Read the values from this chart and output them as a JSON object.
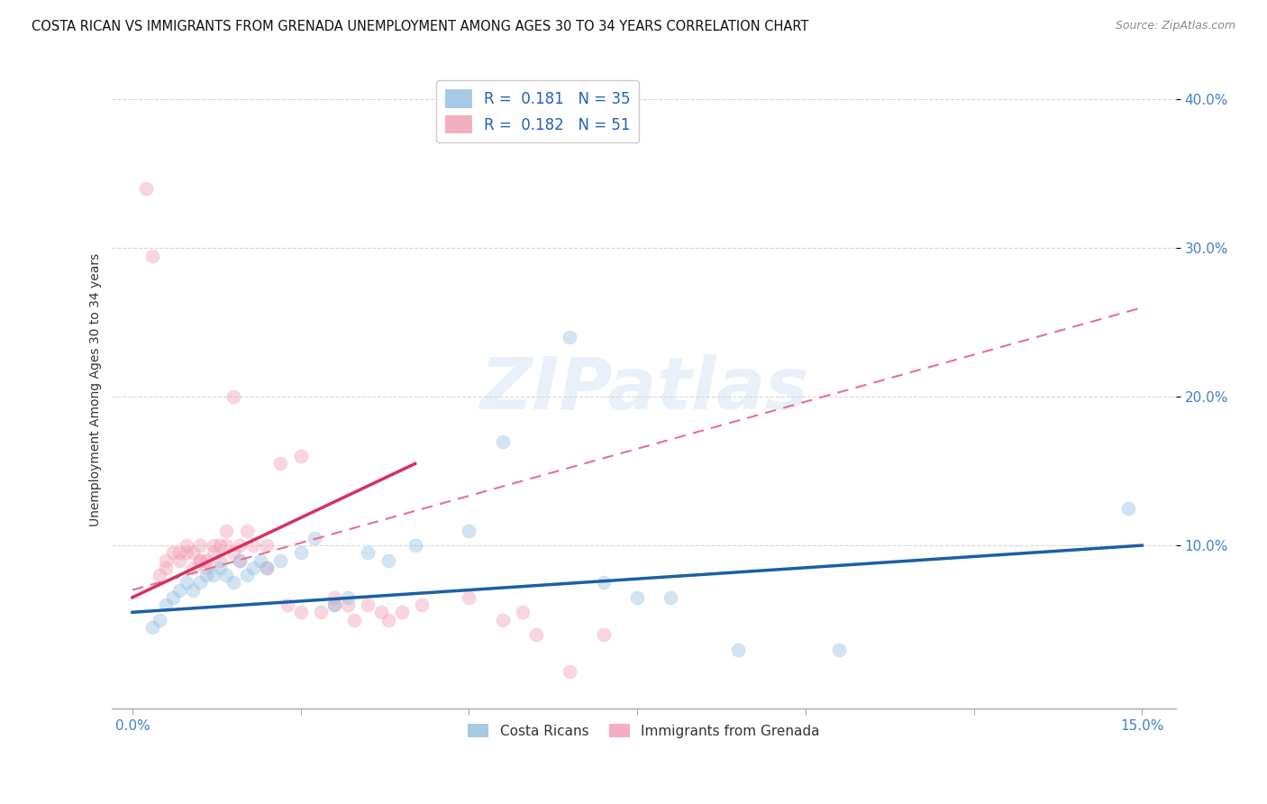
{
  "title": "COSTA RICAN VS IMMIGRANTS FROM GRENADA UNEMPLOYMENT AMONG AGES 30 TO 34 YEARS CORRELATION CHART",
  "source": "Source: ZipAtlas.com",
  "xlabel_ticks_show": [
    "0.0%",
    "15.0%"
  ],
  "xlabel_tick_vals_show": [
    0.0,
    0.15
  ],
  "xlabel_tick_vals_minor": [
    0.025,
    0.05,
    0.075,
    0.1,
    0.125
  ],
  "ylabel": "Unemployment Among Ages 30 to 34 years",
  "ylabel_ticks": [
    "40.0%",
    "30.0%",
    "20.0%",
    "10.0%"
  ],
  "ylabel_tick_vals": [
    0.4,
    0.3,
    0.2,
    0.1
  ],
  "xlim": [
    -0.003,
    0.155
  ],
  "ylim": [
    -0.01,
    0.42
  ],
  "legend_labels": [
    "Costa Ricans",
    "Immigrants from Grenada"
  ],
  "blue_scatter_x": [
    0.003,
    0.004,
    0.005,
    0.006,
    0.007,
    0.008,
    0.009,
    0.01,
    0.011,
    0.012,
    0.013,
    0.014,
    0.015,
    0.016,
    0.017,
    0.018,
    0.019,
    0.02,
    0.022,
    0.025,
    0.027,
    0.03,
    0.032,
    0.035,
    0.038,
    0.042,
    0.05,
    0.055,
    0.065,
    0.07,
    0.075,
    0.08,
    0.09,
    0.105,
    0.148
  ],
  "blue_scatter_y": [
    0.045,
    0.05,
    0.06,
    0.065,
    0.07,
    0.075,
    0.07,
    0.075,
    0.08,
    0.08,
    0.085,
    0.08,
    0.075,
    0.09,
    0.08,
    0.085,
    0.09,
    0.085,
    0.09,
    0.095,
    0.105,
    0.06,
    0.065,
    0.095,
    0.09,
    0.1,
    0.11,
    0.17,
    0.24,
    0.075,
    0.065,
    0.065,
    0.03,
    0.03,
    0.125
  ],
  "pink_scatter_x": [
    0.002,
    0.003,
    0.004,
    0.005,
    0.005,
    0.006,
    0.007,
    0.007,
    0.008,
    0.008,
    0.009,
    0.009,
    0.01,
    0.01,
    0.01,
    0.011,
    0.011,
    0.012,
    0.012,
    0.013,
    0.013,
    0.014,
    0.014,
    0.015,
    0.015,
    0.016,
    0.016,
    0.017,
    0.018,
    0.02,
    0.02,
    0.022,
    0.023,
    0.025,
    0.025,
    0.028,
    0.03,
    0.03,
    0.032,
    0.033,
    0.035,
    0.037,
    0.038,
    0.04,
    0.043,
    0.05,
    0.055,
    0.058,
    0.06,
    0.065,
    0.07
  ],
  "pink_scatter_y": [
    0.34,
    0.295,
    0.08,
    0.085,
    0.09,
    0.095,
    0.095,
    0.09,
    0.1,
    0.095,
    0.095,
    0.085,
    0.09,
    0.09,
    0.1,
    0.085,
    0.09,
    0.095,
    0.1,
    0.09,
    0.1,
    0.1,
    0.11,
    0.095,
    0.2,
    0.09,
    0.1,
    0.11,
    0.1,
    0.085,
    0.1,
    0.155,
    0.06,
    0.055,
    0.16,
    0.055,
    0.06,
    0.065,
    0.06,
    0.05,
    0.06,
    0.055,
    0.05,
    0.055,
    0.06,
    0.065,
    0.05,
    0.055,
    0.04,
    0.015,
    0.04
  ],
  "blue_line_x": [
    0.0,
    0.15
  ],
  "blue_line_y": [
    0.055,
    0.1
  ],
  "pink_solid_line_x": [
    0.0,
    0.042
  ],
  "pink_solid_line_y": [
    0.065,
    0.155
  ],
  "pink_dash_line_x": [
    0.0,
    0.15
  ],
  "pink_dash_line_y": [
    0.07,
    0.26
  ],
  "scatter_size": 120,
  "scatter_alpha": 0.4,
  "blue_color": "#90bce0",
  "pink_color": "#f09ab0",
  "blue_line_color": "#1a5fa8",
  "pink_solid_color": "#d63060",
  "pink_dash_color": "#e8708a",
  "grid_color": "#cccccc",
  "bg_color": "#ffffff",
  "title_fontsize": 10.5,
  "axis_label_fontsize": 10,
  "tick_fontsize": 11,
  "tick_color": "#4080cc"
}
